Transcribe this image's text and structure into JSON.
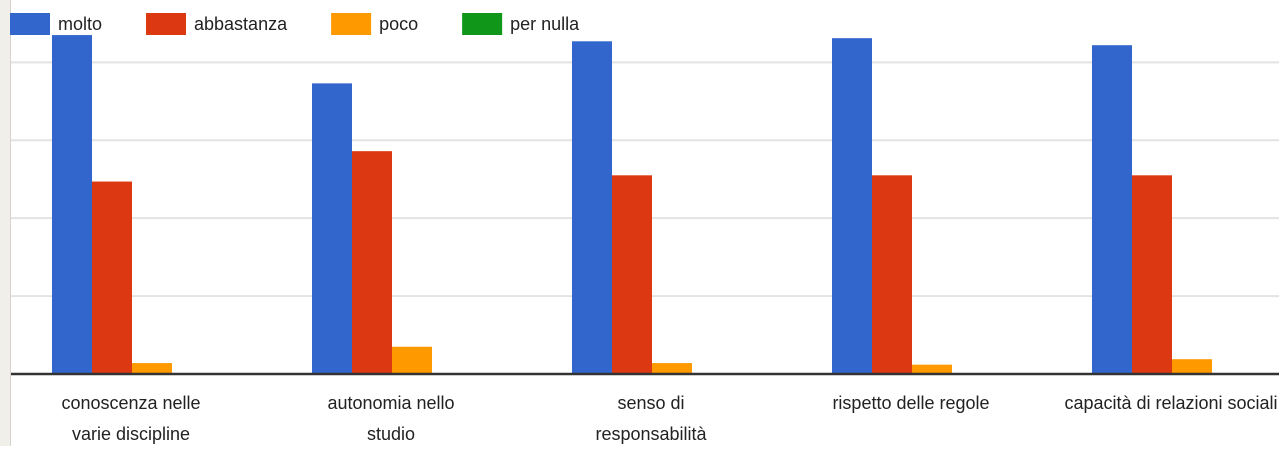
{
  "chart_data": {
    "type": "bar",
    "categories": [
      "conoscenza nelle varie discipline",
      "autonomia nello studio",
      "senso di responsabilità",
      "rispetto delle regole",
      "capacità di relazioni sociali"
    ],
    "series": [
      {
        "name": "molto",
        "color": "#3366cc",
        "values": [
          4.35,
          3.73,
          4.27,
          4.31,
          4.22
        ]
      },
      {
        "name": "abbastanza",
        "color": "#dc3912",
        "values": [
          2.47,
          2.86,
          2.55,
          2.55,
          2.55
        ]
      },
      {
        "name": "poco",
        "color": "#ff9900",
        "values": [
          0.14,
          0.35,
          0.14,
          0.12,
          0.19
        ]
      },
      {
        "name": "per nulla",
        "color": "#109618",
        "values": [
          0,
          0,
          0,
          0,
          0
        ]
      }
    ],
    "ylim": [
      0,
      4.8
    ],
    "yticks": [
      0,
      1,
      2,
      3,
      4
    ],
    "grid": true,
    "legend": "top"
  }
}
